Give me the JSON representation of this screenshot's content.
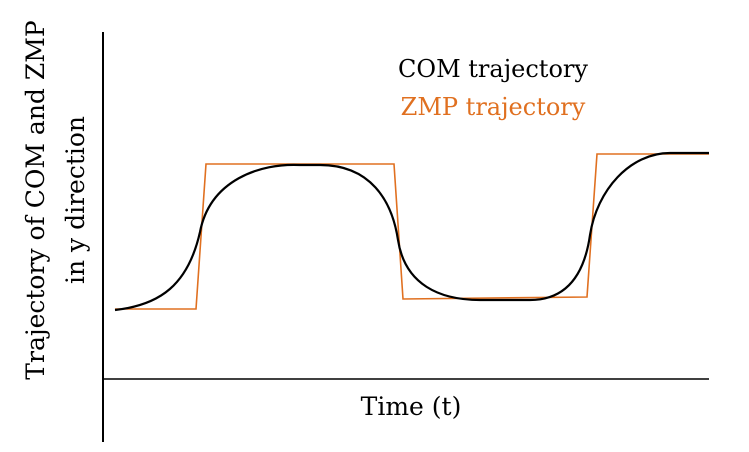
{
  "colors": {
    "com": "#000000",
    "zmp": "#e07020",
    "axis": "#000000"
  },
  "axes": {
    "xlabel": "Time (t)",
    "ylabel_line1": "Trajectory of COM and ZMP",
    "ylabel_line2": "in y direction"
  },
  "legend": {
    "com_label": "COM trajectory",
    "zmp_label": "ZMP trajectory"
  }
}
